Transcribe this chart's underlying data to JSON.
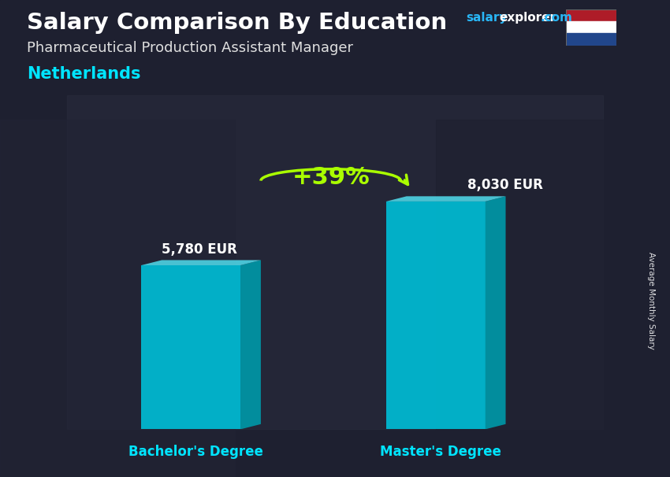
{
  "title": "Salary Comparison By Education",
  "subtitle_job": "Pharmaceutical Production Assistant Manager",
  "subtitle_country": "Netherlands",
  "site_salary": "salary",
  "site_explorer": "explorer",
  "site_com": ".com",
  "bar1_label": "Bachelor's Degree",
  "bar2_label": "Master's Degree",
  "bar1_value": 5780,
  "bar2_value": 8030,
  "bar1_text": "5,780 EUR",
  "bar2_text": "8,030 EUR",
  "pct_change": "+39%",
  "ylabel": "Average Monthly Salary",
  "bar_color_face": "#00bcd4",
  "bar_color_side": "#0097a7",
  "bar_color_top": "#4dd0e1",
  "title_color": "#ffffff",
  "subtitle_job_color": "#e0e0e0",
  "subtitle_country_color": "#00e5ff",
  "bar_label_color": "#00e5ff",
  "value_label_color": "#ffffff",
  "pct_color": "#aaff00",
  "arrow_color": "#aaff00",
  "ylabel_color": "#ffffff",
  "flag_red": "#ae1c28",
  "flag_white": "#ffffff",
  "flag_blue": "#21468b",
  "figsize": [
    8.5,
    6.06
  ],
  "dpi": 100
}
